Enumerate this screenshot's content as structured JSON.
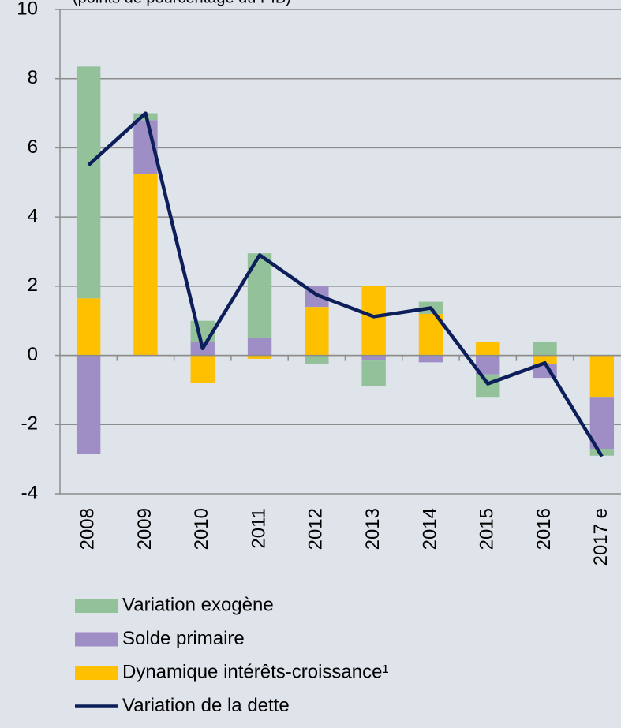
{
  "chart_data": {
    "type": "bar",
    "subtitle": "(points de pourcentage du PIB)",
    "categories": [
      "2008",
      "2009",
      "2010",
      "2011",
      "2012",
      "2013",
      "2014",
      "2015",
      "2016",
      "2017 e"
    ],
    "series": [
      {
        "name": "Variation exogène",
        "color": "#93c19a",
        "values": [
          6.7,
          0.2,
          0.6,
          2.45,
          -0.25,
          -0.75,
          0.35,
          -0.65,
          0.4,
          -0.2
        ]
      },
      {
        "name": "Solde primaire",
        "color": "#9f8dc6",
        "values": [
          -2.85,
          1.55,
          0.4,
          0.5,
          0.6,
          -0.15,
          -0.2,
          -0.55,
          -0.4,
          -1.5
        ]
      },
      {
        "name": "Dynamique intérêts-croissance¹",
        "color": "#ffc000",
        "values": [
          1.65,
          5.25,
          -0.8,
          -0.1,
          1.4,
          2.0,
          1.2,
          0.38,
          -0.25,
          -1.2
        ]
      },
      {
        "name": "Variation de la dette",
        "color": "#0c1f5a",
        "type": "line",
        "values": [
          5.5,
          7.0,
          0.2,
          2.9,
          1.75,
          1.12,
          1.37,
          -0.82,
          -0.22,
          -2.92
        ]
      }
    ],
    "ylim": [
      -4,
      10
    ],
    "yticks": [
      -4,
      -2,
      0,
      2,
      4,
      6,
      8,
      10
    ],
    "grid": true
  }
}
